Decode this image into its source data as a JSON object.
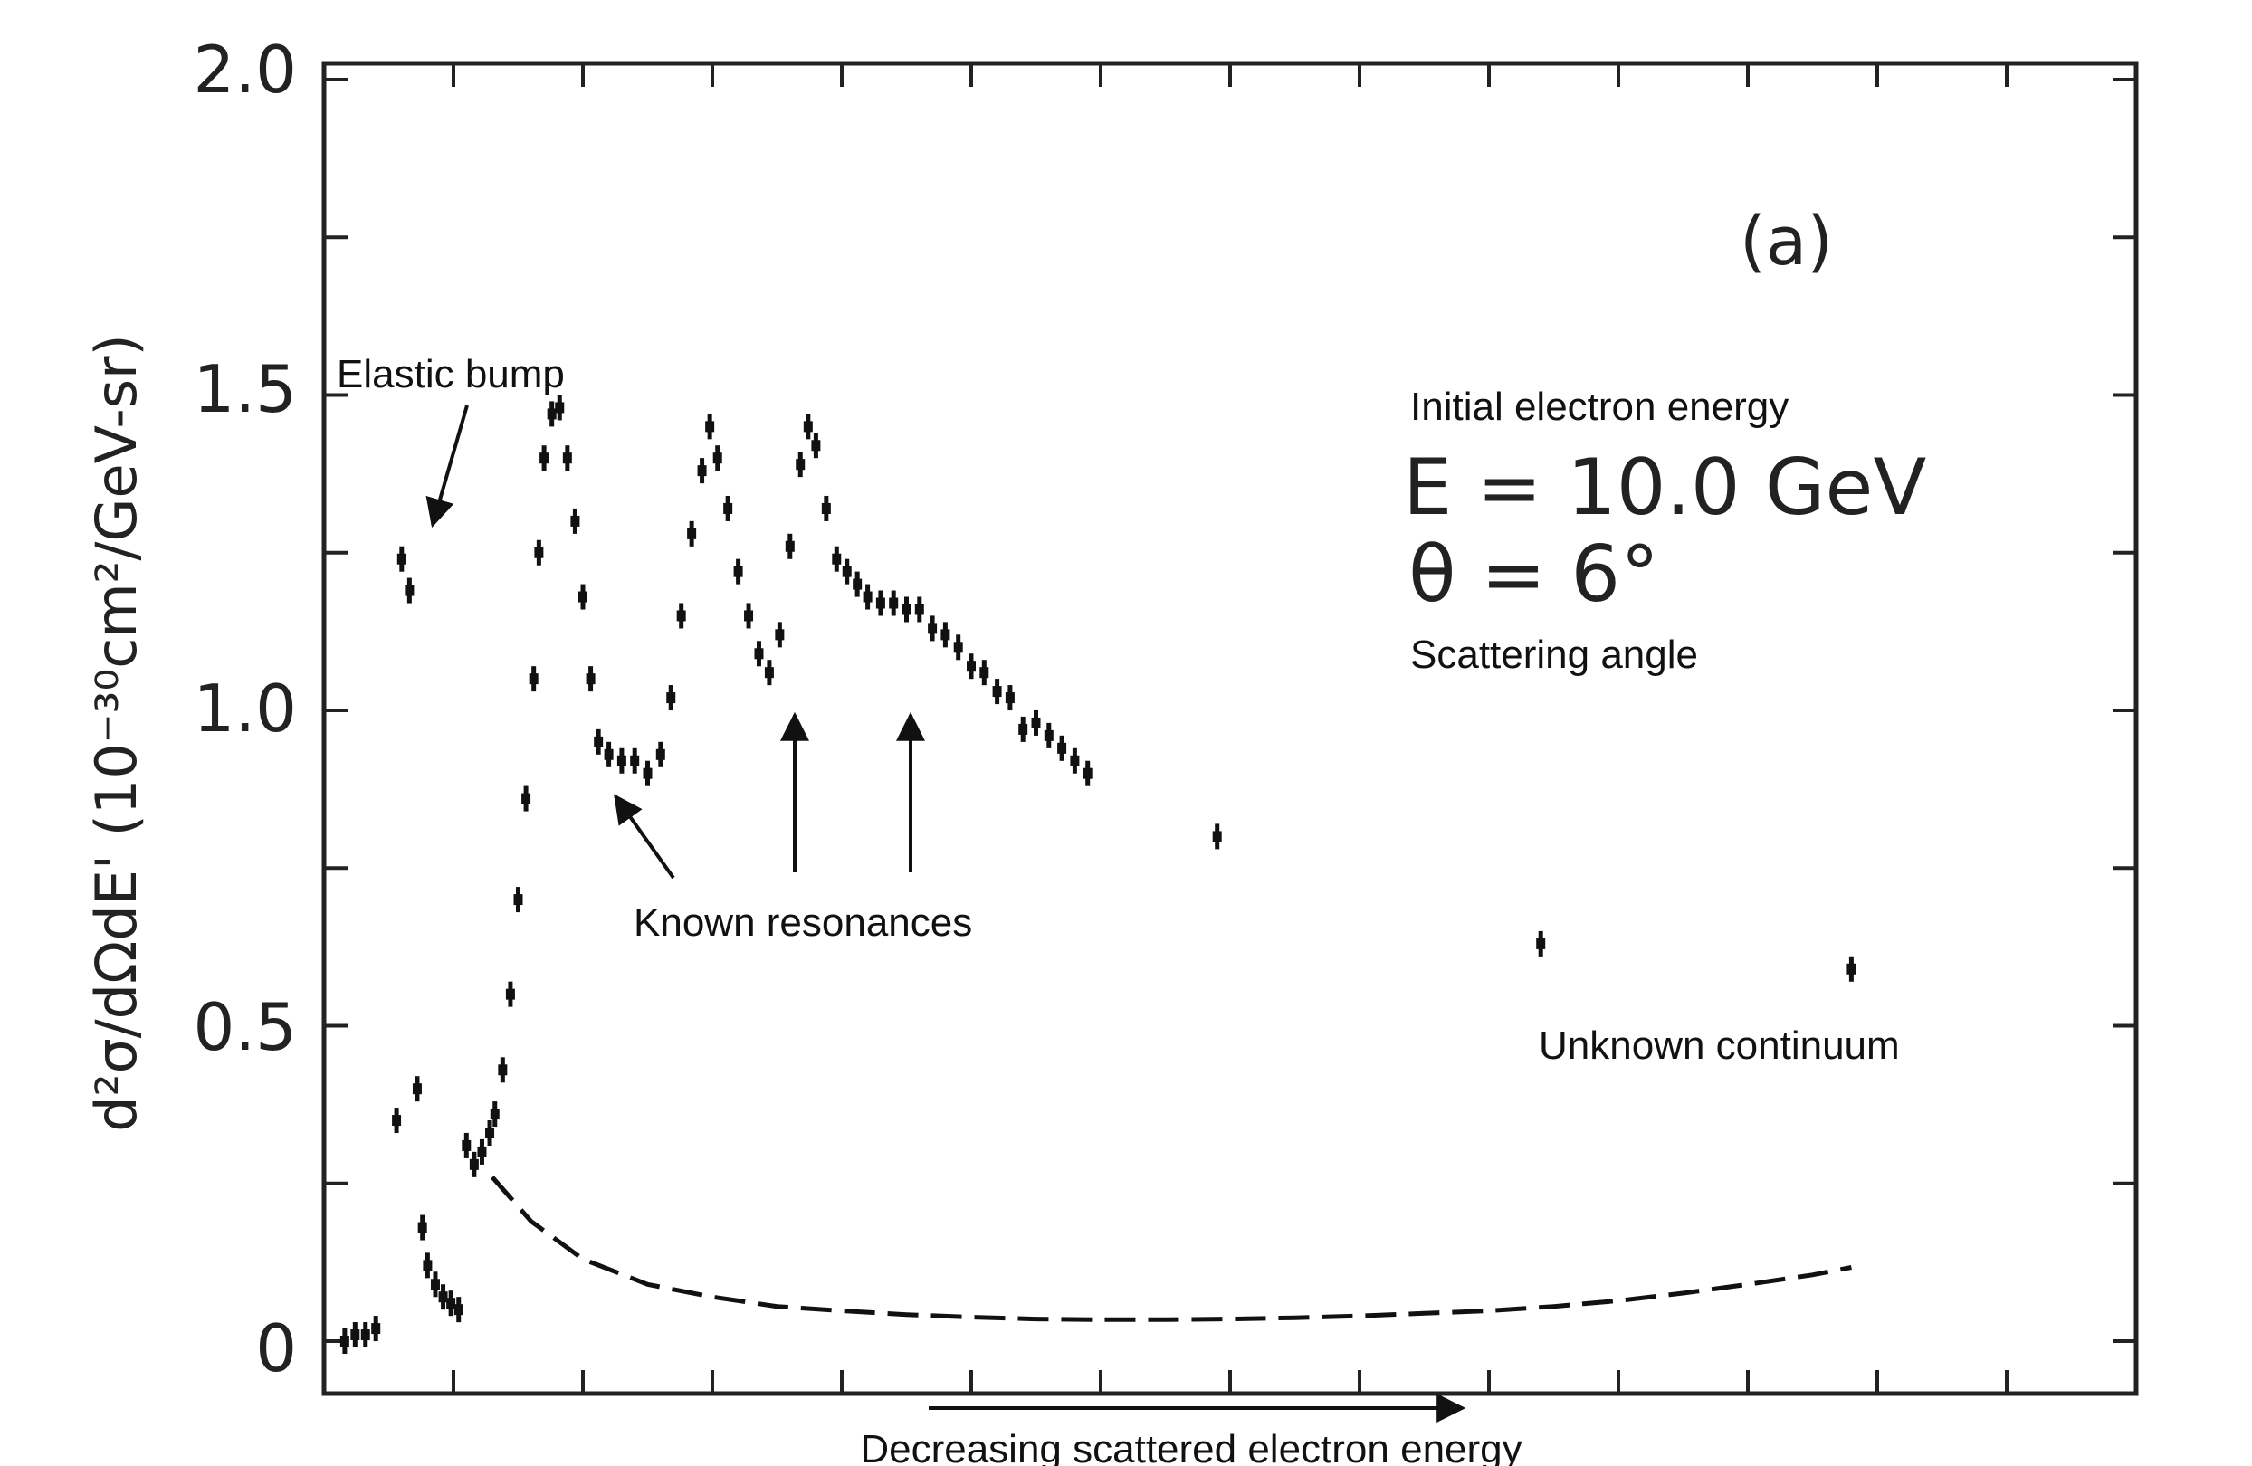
{
  "chart_data": {
    "type": "scatter",
    "ylabel": "d²σ/dΩdE' (10⁻³⁰cm²/GeV-sr)",
    "ylim": [
      0,
      2.0
    ],
    "yticks": [
      "0",
      "0.5",
      "1.0",
      "1.5",
      "2.0"
    ],
    "xlabel": "Decreasing scattered electron energy",
    "panel_label": "(a)",
    "series": [
      {
        "values": [
          [
            0.08,
            0.0
          ],
          [
            0.12,
            0.01
          ],
          [
            0.16,
            0.01
          ],
          [
            0.2,
            0.02
          ],
          [
            0.28,
            0.35
          ],
          [
            0.3,
            1.24
          ],
          [
            0.33,
            1.19
          ],
          [
            0.36,
            0.4
          ],
          [
            0.38,
            0.18
          ],
          [
            0.4,
            0.12
          ],
          [
            0.43,
            0.09
          ],
          [
            0.46,
            0.07
          ],
          [
            0.49,
            0.06
          ],
          [
            0.52,
            0.05
          ],
          [
            0.55,
            0.31
          ],
          [
            0.58,
            0.28
          ],
          [
            0.61,
            0.3
          ],
          [
            0.64,
            0.33
          ],
          [
            0.66,
            0.36
          ],
          [
            0.69,
            0.43
          ],
          [
            0.72,
            0.55
          ],
          [
            0.75,
            0.7
          ],
          [
            0.78,
            0.86
          ],
          [
            0.81,
            1.05
          ],
          [
            0.83,
            1.25
          ],
          [
            0.85,
            1.4
          ],
          [
            0.88,
            1.47
          ],
          [
            0.91,
            1.48
          ],
          [
            0.94,
            1.4
          ],
          [
            0.97,
            1.3
          ],
          [
            1.0,
            1.18
          ],
          [
            1.03,
            1.05
          ],
          [
            1.06,
            0.95
          ],
          [
            1.1,
            0.93
          ],
          [
            1.15,
            0.92
          ],
          [
            1.2,
            0.92
          ],
          [
            1.25,
            0.9
          ],
          [
            1.3,
            0.93
          ],
          [
            1.34,
            1.02
          ],
          [
            1.38,
            1.15
          ],
          [
            1.42,
            1.28
          ],
          [
            1.46,
            1.38
          ],
          [
            1.49,
            1.45
          ],
          [
            1.52,
            1.4
          ],
          [
            1.56,
            1.32
          ],
          [
            1.6,
            1.22
          ],
          [
            1.64,
            1.15
          ],
          [
            1.68,
            1.09
          ],
          [
            1.72,
            1.06
          ],
          [
            1.76,
            1.12
          ],
          [
            1.8,
            1.26
          ],
          [
            1.84,
            1.39
          ],
          [
            1.87,
            1.45
          ],
          [
            1.9,
            1.42
          ],
          [
            1.94,
            1.32
          ],
          [
            1.98,
            1.24
          ],
          [
            2.02,
            1.22
          ],
          [
            2.06,
            1.2
          ],
          [
            2.1,
            1.18
          ],
          [
            2.15,
            1.17
          ],
          [
            2.2,
            1.17
          ],
          [
            2.25,
            1.16
          ],
          [
            2.3,
            1.16
          ],
          [
            2.35,
            1.13
          ],
          [
            2.4,
            1.12
          ],
          [
            2.45,
            1.1
          ],
          [
            2.5,
            1.07
          ],
          [
            2.55,
            1.06
          ],
          [
            2.6,
            1.03
          ],
          [
            2.65,
            1.02
          ],
          [
            2.7,
            0.97
          ],
          [
            2.75,
            0.98
          ],
          [
            2.8,
            0.96
          ],
          [
            2.85,
            0.94
          ],
          [
            2.9,
            0.92
          ],
          [
            2.95,
            0.9
          ],
          [
            3.45,
            0.8
          ],
          [
            4.7,
            0.63
          ],
          [
            5.9,
            0.59
          ]
        ]
      },
      {
        "values": [
          [
            0.65,
            0.26
          ],
          [
            0.8,
            0.19
          ],
          [
            1.0,
            0.13
          ],
          [
            1.25,
            0.09
          ],
          [
            1.5,
            0.07
          ],
          [
            1.75,
            0.055
          ],
          [
            2.0,
            0.048
          ],
          [
            2.25,
            0.042
          ],
          [
            2.5,
            0.038
          ],
          [
            2.75,
            0.035
          ],
          [
            3.0,
            0.034
          ],
          [
            3.25,
            0.034
          ],
          [
            3.5,
            0.035
          ],
          [
            3.75,
            0.037
          ],
          [
            4.0,
            0.04
          ],
          [
            4.25,
            0.044
          ],
          [
            4.5,
            0.048
          ],
          [
            4.75,
            0.055
          ],
          [
            5.0,
            0.064
          ],
          [
            5.25,
            0.076
          ],
          [
            5.5,
            0.09
          ],
          [
            5.75,
            0.105
          ],
          [
            5.9,
            0.117
          ]
        ]
      }
    ],
    "annotations": {
      "elastic": "Elastic bump",
      "initial": "Initial electron energy",
      "energy": "E = 10.0 GeV",
      "theta": "θ = 6°",
      "scattering": "Scattering angle",
      "known": "Known resonances",
      "unknown": "Unknown continuum"
    },
    "grid": false
  }
}
